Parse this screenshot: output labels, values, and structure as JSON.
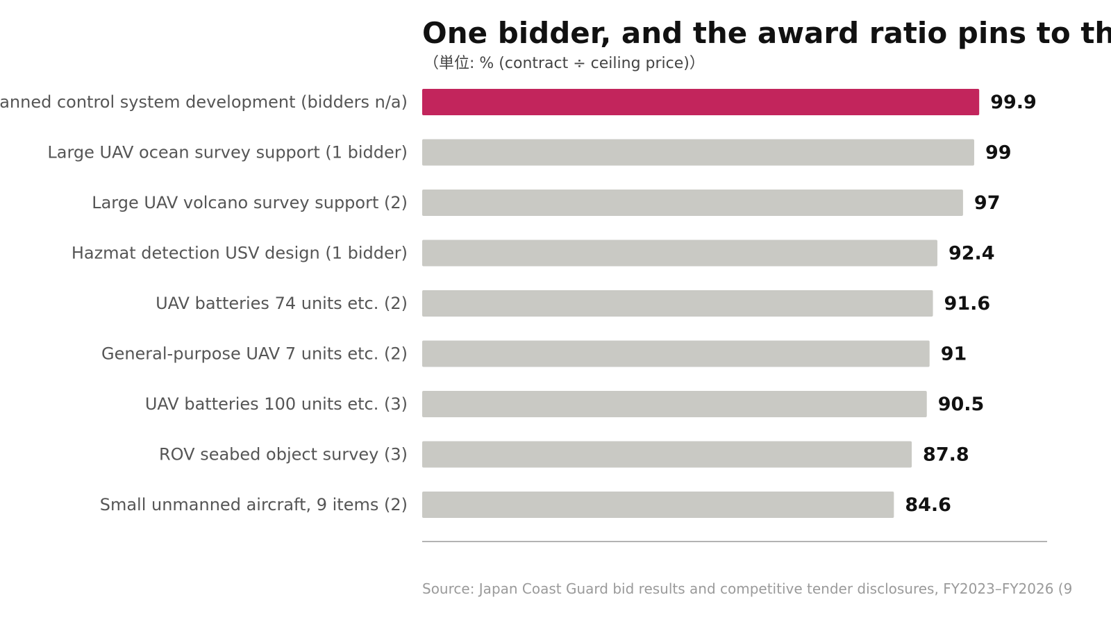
{
  "colors": {
    "highlight": "#c2255c",
    "bar": "#c9c9c4",
    "axis": "#9a9a9a"
  },
  "chart_data": {
    "type": "bar",
    "orientation": "horizontal",
    "title": "One bidder, and the award ratio pins to the ce",
    "subtitle": "（単位: % (contract ÷ ceiling price)）",
    "source": "Source: Japan Coast Guard bid results and competitive tender disclosures, FY2023–FY2026 (9",
    "xlim": [
      0,
      100
    ],
    "grid": false,
    "categories": [
      "anned control system development (bidders n/a)",
      "Large UAV ocean survey support (1 bidder)",
      "Large UAV volcano survey support (2)",
      "Hazmat detection USV design (1 bidder)",
      "UAV batteries 74 units etc. (2)",
      "General-purpose UAV 7 units etc. (2)",
      "UAV batteries 100 units etc. (3)",
      "ROV seabed object survey (3)",
      "Small unmanned aircraft, 9 items (2)"
    ],
    "values": [
      99.9,
      99,
      97,
      92.4,
      91.6,
      91,
      90.5,
      87.8,
      84.6
    ],
    "value_labels": [
      "99.9",
      "99",
      "97",
      "92.4",
      "91.6",
      "91",
      "90.5",
      "87.8",
      "84.6"
    ],
    "highlight_index": 0
  }
}
